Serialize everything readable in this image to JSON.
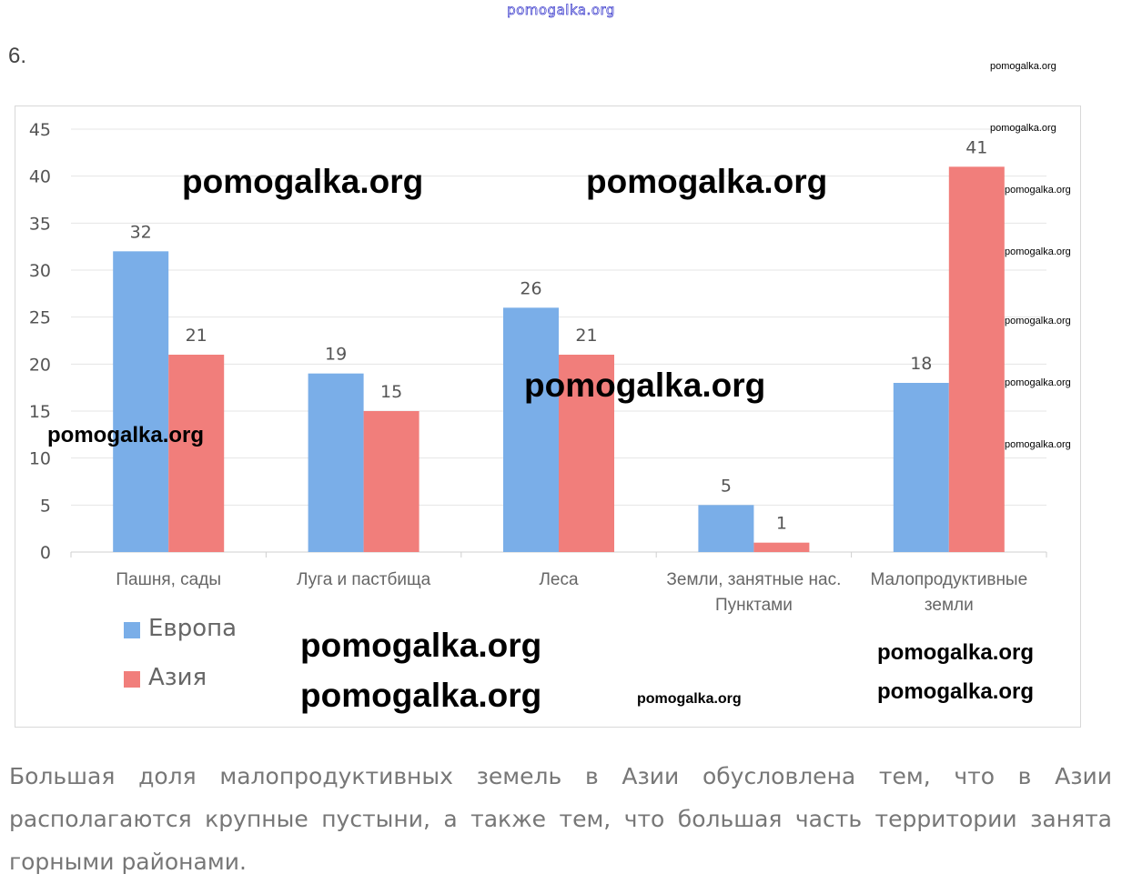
{
  "header": {
    "site_link": "pomogalka.org",
    "task_number": "6."
  },
  "chart_data": {
    "type": "bar",
    "title": "",
    "xlabel": "",
    "ylabel": "",
    "ylim": [
      0,
      45
    ],
    "yticks": [
      "0",
      "5",
      "10",
      "15",
      "20",
      "25",
      "30",
      "35",
      "40",
      "45"
    ],
    "grid": true,
    "legend_position": "bottom-left",
    "categories": [
      "Пашня, сады",
      "Луга и пастбища",
      "Леса",
      "Земли, занятные нас. Пунктами",
      "Малопродуктивные земли"
    ],
    "category_lines": [
      [
        "Пашня, сады"
      ],
      [
        "Луга и пастбища"
      ],
      [
        "Леса"
      ],
      [
        "Земли, занятные нас.",
        "Пунктами"
      ],
      [
        "Малопродуктивные",
        "земли"
      ]
    ],
    "series": [
      {
        "name": "Европа",
        "color": "#7aaee8",
        "values": [
          32,
          19,
          26,
          5,
          18
        ]
      },
      {
        "name": "Азия",
        "color": "#f17e7b",
        "values": [
          21,
          15,
          21,
          1,
          41
        ]
      }
    ]
  },
  "answer": {
    "lines": [
      "Большая доля малопродуктивных земель в Азии обусловлена тем, что в Азии",
      "располагаются крупные пустыни, а также тем, что большая часть территории занята",
      "горными районами."
    ]
  },
  "watermarks": {
    "big": [
      "pomogalka.org",
      "pomogalka.org",
      "pomogalka.org",
      "pomogalka.org",
      "pomogalka.org"
    ],
    "mid": [
      "pomogalka.org",
      "pomogalka.org",
      "pomogalka.org"
    ],
    "small": [
      "pomogalka.org",
      "pomogalka.org",
      "pomogalka.org",
      "pomogalka.org",
      "pomogalka.org",
      "pomogalka.org",
      "pomogalka.org",
      "pomogalka.org"
    ]
  }
}
